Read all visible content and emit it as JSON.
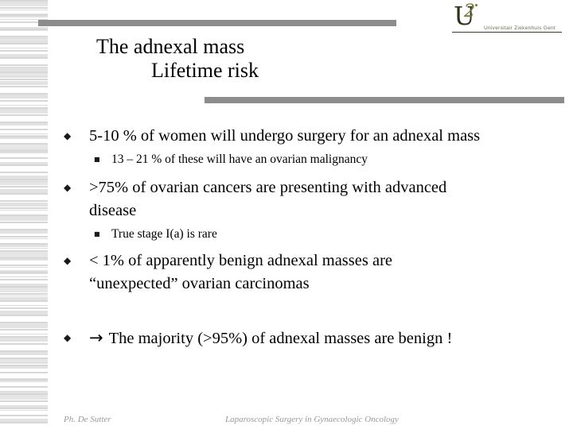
{
  "slide": {
    "title_line1": "The adnexal mass",
    "title_line2": "Lifetime risk",
    "logo": {
      "monogram_u": "U",
      "monogram_2": "2",
      "caption": "Universitair Ziekenhuis Gent"
    },
    "bullets": [
      {
        "level": 1,
        "marker": "◆",
        "text": "5-10 % of women will undergo surgery for an adnexal mass"
      },
      {
        "level": 2,
        "marker": "■",
        "text": "13 – 21 % of these will have an ovarian malignancy"
      },
      {
        "level": 1,
        "marker": "◆",
        "text": ">75% of ovarian cancers are presenting with advanced\ndisease"
      },
      {
        "level": 2,
        "marker": "■",
        "text": "True stage I(a) is rare"
      },
      {
        "level": 1,
        "marker": "◆",
        "text": "< 1% of apparently benign adnexal masses are\n“unexpected” ovarian carcinomas"
      },
      {
        "level": 1,
        "marker": "◆",
        "arrow": "→",
        "text": "The majority (>95%) of adnexal masses are benign !"
      }
    ],
    "footer": {
      "left": "Ph. De Sutter",
      "center": "Laparoscopic Surgery in Gynaecologic Oncology"
    },
    "colors": {
      "accent_bar_gray": "#8c8c8c",
      "stripe_gray": "#dcdcdc",
      "logo_dark_olive": "#30301c",
      "logo_olive": "#7a7a2f",
      "footer_text_gray": "#9a9a9a",
      "body_text": "#000000"
    }
  }
}
